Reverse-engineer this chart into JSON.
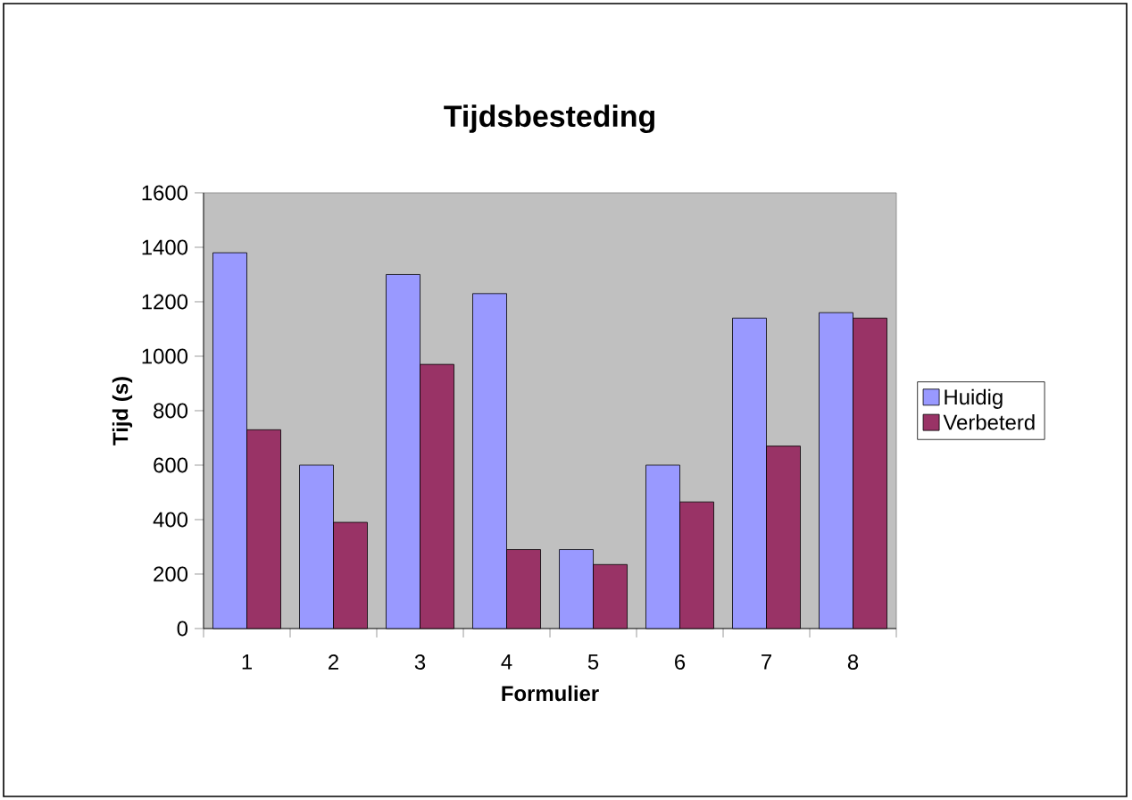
{
  "chart_data": {
    "type": "bar",
    "title": "Tijdsbesteding",
    "xlabel": "Formulier",
    "ylabel": "Tijd (s)",
    "categories": [
      "1",
      "2",
      "3",
      "4",
      "5",
      "6",
      "7",
      "8"
    ],
    "series": [
      {
        "name": "Huidig",
        "color": "#9999ff",
        "values": [
          1380,
          600,
          1300,
          1230,
          290,
          600,
          1140,
          1160
        ]
      },
      {
        "name": "Verbeterd",
        "color": "#993366",
        "values": [
          730,
          390,
          970,
          290,
          235,
          465,
          670,
          1140
        ]
      }
    ],
    "ylim": [
      0,
      1600
    ],
    "yticks": [
      0,
      200,
      400,
      600,
      800,
      1000,
      1200,
      1400,
      1600
    ],
    "legend": "right"
  }
}
